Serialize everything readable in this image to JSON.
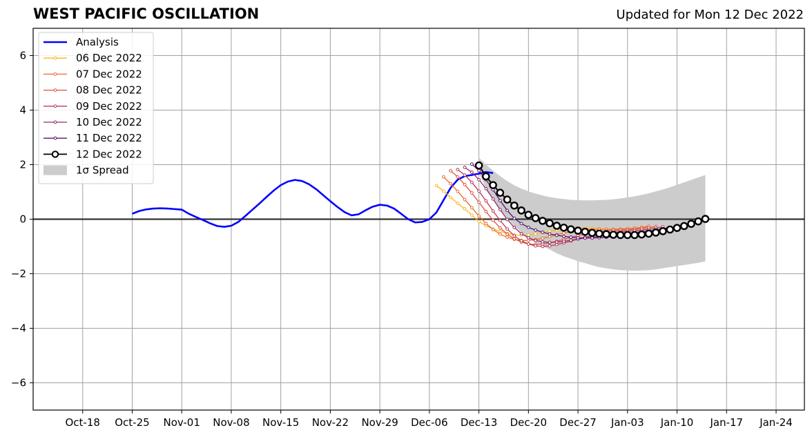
{
  "chart_data": {
    "type": "line",
    "title": "WEST PACIFIC OSCILLATION",
    "subtitle": "Updated for Mon 12 Dec 2022",
    "ylim": [
      -7,
      7
    ],
    "y_ticks": [
      -6,
      -4,
      -2,
      0,
      2,
      4,
      6
    ],
    "y_tick_labels": [
      "−6",
      "−4",
      "−2",
      "0",
      "2",
      "4",
      "6"
    ],
    "x_range": [
      "2022-10-11",
      "2023-01-28"
    ],
    "x_ticks": [
      "2022-10-18",
      "2022-10-25",
      "2022-11-01",
      "2022-11-08",
      "2022-11-15",
      "2022-11-22",
      "2022-11-29",
      "2022-12-06",
      "2022-12-13",
      "2022-12-20",
      "2022-12-27",
      "2023-01-03",
      "2023-01-10",
      "2023-01-17",
      "2023-01-24"
    ],
    "x_tick_labels": [
      "Oct-18",
      "Oct-25",
      "Nov-01",
      "Nov-08",
      "Nov-15",
      "Nov-22",
      "Nov-29",
      "Dec-06",
      "Dec-13",
      "Dec-20",
      "Dec-27",
      "Jan-03",
      "Jan-10",
      "Jan-17",
      "Jan-24"
    ],
    "grid": true,
    "legend_position": "top-left",
    "analysis": {
      "name": "Analysis",
      "color": "#0000ff",
      "start": "2022-10-25",
      "values": [
        0.2,
        0.3,
        0.36,
        0.39,
        0.4,
        0.39,
        0.37,
        0.35,
        0.2,
        0.08,
        -0.03,
        -0.15,
        -0.25,
        -0.28,
        -0.24,
        -0.1,
        0.12,
        0.35,
        0.58,
        0.82,
        1.05,
        1.25,
        1.38,
        1.44,
        1.4,
        1.28,
        1.1,
        0.88,
        0.66,
        0.45,
        0.26,
        0.14,
        0.18,
        0.33,
        0.46,
        0.53,
        0.5,
        0.39,
        0.2,
        0.0,
        -0.12,
        -0.1,
        0.0,
        0.25,
        0.7,
        1.15,
        1.45,
        1.58,
        1.62,
        1.67,
        1.73,
        1.69
      ]
    },
    "forecasts": [
      {
        "name": "06 Dec 2022",
        "color": "#fbb61a",
        "start": "2022-12-07",
        "values": [
          1.23,
          1.03,
          0.8,
          0.58,
          0.38,
          0.15,
          -0.08,
          -0.24,
          -0.36,
          -0.45,
          -0.52,
          -0.58,
          -0.6,
          -0.58,
          -0.54,
          -0.49,
          -0.44,
          -0.4,
          -0.37,
          -0.35,
          -0.33,
          -0.33,
          -0.34,
          -0.35,
          -0.37,
          -0.38,
          -0.38,
          -0.36,
          -0.33,
          -0.3
        ]
      },
      {
        "name": "07 Dec 2022",
        "color": "#ed6925",
        "start": "2022-12-08",
        "values": [
          1.55,
          1.3,
          1.02,
          0.72,
          0.42,
          0.12,
          -0.16,
          -0.38,
          -0.55,
          -0.66,
          -0.74,
          -0.78,
          -0.78,
          -0.75,
          -0.7,
          -0.64,
          -0.57,
          -0.51,
          -0.46,
          -0.42,
          -0.39,
          -0.38,
          -0.37,
          -0.37,
          -0.37,
          -0.36,
          -0.35,
          -0.33,
          -0.3,
          -0.26
        ]
      },
      {
        "name": "08 Dec 2022",
        "color": "#dd513a",
        "start": "2022-12-09",
        "values": [
          1.78,
          1.55,
          1.27,
          0.96,
          0.62,
          0.28,
          -0.04,
          -0.32,
          -0.55,
          -0.72,
          -0.84,
          -0.91,
          -0.93,
          -0.91,
          -0.87,
          -0.81,
          -0.74,
          -0.67,
          -0.6,
          -0.54,
          -0.49,
          -0.45,
          -0.43,
          -0.41,
          -0.4,
          -0.39,
          -0.37,
          -0.34,
          -0.31,
          -0.27
        ]
      },
      {
        "name": "09 Dec 2022",
        "color": "#bc3754",
        "start": "2022-12-10",
        "values": [
          1.82,
          1.62,
          1.35,
          1.03,
          0.67,
          0.3,
          -0.05,
          -0.36,
          -0.61,
          -0.79,
          -0.91,
          -0.98,
          -1.0,
          -0.98,
          -0.93,
          -0.87,
          -0.8,
          -0.73,
          -0.66,
          -0.6,
          -0.55,
          -0.51,
          -0.48,
          -0.46,
          -0.44,
          -0.42,
          -0.4,
          -0.37,
          -0.33,
          -0.28
        ]
      },
      {
        "name": "10 Dec 2022",
        "color": "#932667",
        "start": "2022-12-11",
        "values": [
          1.9,
          1.72,
          1.45,
          1.12,
          0.74,
          0.35,
          -0.01,
          -0.3,
          -0.53,
          -0.68,
          -0.78,
          -0.83,
          -0.85,
          -0.84,
          -0.81,
          -0.77,
          -0.73,
          -0.69,
          -0.66,
          -0.63,
          -0.6,
          -0.57,
          -0.54,
          -0.52,
          -0.49,
          -0.46,
          -0.43,
          -0.39,
          -0.35,
          -0.3
        ]
      },
      {
        "name": "11 Dec 2022",
        "color": "#57106e",
        "start": "2022-12-12",
        "values": [
          2.02,
          1.78,
          1.45,
          1.08,
          0.68,
          0.32,
          0.03,
          -0.16,
          -0.3,
          -0.4,
          -0.48,
          -0.54,
          -0.59,
          -0.63,
          -0.66,
          -0.68,
          -0.69,
          -0.69,
          -0.68,
          -0.66,
          -0.64,
          -0.61,
          -0.58,
          -0.54,
          -0.5,
          -0.46,
          -0.42,
          -0.37,
          -0.32,
          -0.27
        ]
      },
      {
        "name": "12 Dec 2022",
        "color": "#000000",
        "start": "2022-12-13",
        "values": [
          1.97,
          1.57,
          1.25,
          0.97,
          0.72,
          0.5,
          0.32,
          0.16,
          0.04,
          -0.06,
          -0.15,
          -0.24,
          -0.31,
          -0.37,
          -0.42,
          -0.46,
          -0.5,
          -0.53,
          -0.55,
          -0.57,
          -0.58,
          -0.58,
          -0.58,
          -0.56,
          -0.53,
          -0.49,
          -0.44,
          -0.38,
          -0.32,
          -0.25,
          -0.17,
          -0.08,
          0.01
        ]
      }
    ],
    "spread": {
      "name": "1σ Spread",
      "color": "#cccccc",
      "start": "2022-12-13",
      "upper": [
        2.25,
        2.0,
        1.78,
        1.58,
        1.4,
        1.24,
        1.12,
        1.02,
        0.94,
        0.87,
        0.81,
        0.77,
        0.74,
        0.71,
        0.7,
        0.69,
        0.69,
        0.7,
        0.71,
        0.73,
        0.76,
        0.8,
        0.84,
        0.89,
        0.95,
        1.02,
        1.09,
        1.17,
        1.26,
        1.35,
        1.44,
        1.53,
        1.62
      ],
      "lower": [
        1.69,
        1.14,
        0.72,
        0.36,
        0.04,
        -0.24,
        -0.48,
        -0.7,
        -0.86,
        -0.99,
        -1.11,
        -1.25,
        -1.36,
        -1.45,
        -1.54,
        -1.61,
        -1.69,
        -1.76,
        -1.8,
        -1.84,
        -1.87,
        -1.88,
        -1.89,
        -1.88,
        -1.87,
        -1.84,
        -1.8,
        -1.76,
        -1.72,
        -1.68,
        -1.64,
        -1.6,
        -1.55
      ]
    }
  }
}
